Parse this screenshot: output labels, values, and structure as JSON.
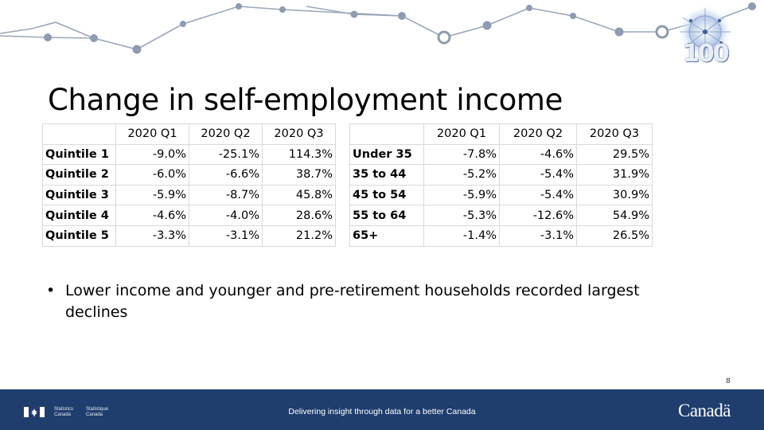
{
  "header": {
    "logo_text": "100"
  },
  "slide": {
    "title": "Change in self-employment income"
  },
  "table_quintile": {
    "columns": [
      "",
      "2020 Q1",
      "2020 Q2",
      "2020 Q3"
    ],
    "rows": [
      {
        "label": "Quintile 1",
        "q1": "-9.0%",
        "q2": "-25.1%",
        "q3": "114.3%"
      },
      {
        "label": "Quintile 2",
        "q1": "-6.0%",
        "q2": "-6.6%",
        "q3": "38.7%"
      },
      {
        "label": "Quintile 3",
        "q1": "-5.9%",
        "q2": "-8.7%",
        "q3": "45.8%"
      },
      {
        "label": "Quintile 4",
        "q1": "-4.6%",
        "q2": "-4.0%",
        "q3": "28.6%"
      },
      {
        "label": "Quintile 5",
        "q1": "-3.3%",
        "q2": "-3.1%",
        "q3": "21.2%"
      }
    ]
  },
  "table_age": {
    "columns": [
      "",
      "2020 Q1",
      "2020 Q2",
      "2020 Q3"
    ],
    "rows": [
      {
        "label": "Under 35",
        "q1": "-7.8%",
        "q2": "-4.6%",
        "q3": "29.5%"
      },
      {
        "label": "35 to 44",
        "q1": "-5.2%",
        "q2": "-5.4%",
        "q3": "31.9%"
      },
      {
        "label": "45 to 54",
        "q1": "-5.9%",
        "q2": "-5.4%",
        "q3": "30.9%"
      },
      {
        "label": "55 to 64",
        "q1": "-5.3%",
        "q2": "-12.6%",
        "q3": "54.9%"
      },
      {
        "label": "65+",
        "q1": "-1.4%",
        "q2": "-3.1%",
        "q3": "26.5%"
      }
    ]
  },
  "bullet": {
    "symbol": "•",
    "text": "Lower income and younger and pre-retirement households recorded largest declines"
  },
  "page_number": "8",
  "footer": {
    "agency_en_1": "Statistics",
    "agency_en_2": "Canada",
    "agency_fr_1": "Statistique",
    "agency_fr_2": "Canada",
    "tagline": "Delivering insight through data for a better Canada",
    "wordmark": "Canadä",
    "colors": {
      "background": "#1f3e6e",
      "flag_red": "#ffffff"
    }
  }
}
